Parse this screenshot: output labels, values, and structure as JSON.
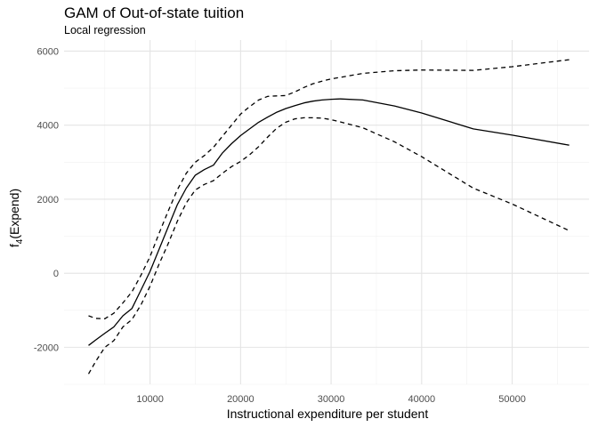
{
  "chart_data": {
    "type": "line",
    "title": "GAM of Out-of-state tuition",
    "subtitle": "Local regression",
    "xlabel": "Instructional expenditure per student",
    "ylabel": {
      "base": "f",
      "subscript": "4",
      "rest": "(Expend)"
    },
    "xlim": [
      500,
      58500
    ],
    "ylim": [
      -3000,
      6300
    ],
    "x_ticks": [
      10000,
      20000,
      30000,
      40000,
      50000
    ],
    "y_ticks": [
      -2000,
      0,
      2000,
      4000,
      6000
    ],
    "x_tick_labels": [
      "10000",
      "20000",
      "30000",
      "40000",
      "50000"
    ],
    "y_tick_labels": [
      "-2000",
      "0",
      "2000",
      "4000",
      "6000"
    ],
    "grid": true,
    "series": [
      {
        "style": "solid",
        "color": "#000000",
        "x": [
          3200,
          4000,
          5000,
          6000,
          7000,
          8000,
          9000,
          10000,
          11000,
          12000,
          13000,
          14000,
          15000,
          16000,
          17000,
          18000,
          19000,
          20000,
          21000,
          22000,
          23000,
          24000,
          25000,
          26000,
          27000,
          28000,
          29000,
          30000,
          31000,
          33500,
          37000,
          40000,
          45700,
          50000,
          56300
        ],
        "y": [
          -1950,
          -1800,
          -1620,
          -1450,
          -1150,
          -950,
          -450,
          50,
          650,
          1250,
          1850,
          2300,
          2650,
          2800,
          2920,
          3250,
          3500,
          3720,
          3900,
          4080,
          4220,
          4350,
          4450,
          4530,
          4600,
          4650,
          4680,
          4700,
          4710,
          4680,
          4520,
          4330,
          3900,
          3730,
          3460
        ]
      },
      {
        "style": "dashed",
        "color": "#000000",
        "x": [
          3200,
          4000,
          5000,
          6000,
          7000,
          8000,
          9000,
          10000,
          11000,
          12000,
          13000,
          14000,
          15000,
          16000,
          17000,
          18000,
          19000,
          20000,
          21000,
          22000,
          23000,
          24000,
          25000,
          26000,
          27000,
          28000,
          29000,
          30000,
          31000,
          33500,
          37000,
          40000,
          45700,
          50000,
          56300
        ],
        "y": [
          -1150,
          -1220,
          -1230,
          -1080,
          -800,
          -500,
          -50,
          450,
          1080,
          1680,
          2250,
          2700,
          3000,
          3180,
          3400,
          3700,
          4000,
          4300,
          4500,
          4680,
          4780,
          4790,
          4800,
          4900,
          5020,
          5120,
          5190,
          5250,
          5290,
          5400,
          5470,
          5490,
          5480,
          5580,
          5770
        ]
      },
      {
        "style": "dashed",
        "color": "#000000",
        "x": [
          3200,
          4000,
          5000,
          6000,
          7000,
          8000,
          9000,
          10000,
          11000,
          12000,
          13000,
          14000,
          15000,
          16000,
          17000,
          18000,
          19000,
          20000,
          21000,
          22000,
          23000,
          24000,
          25000,
          26000,
          27000,
          28000,
          29000,
          30000,
          31000,
          33500,
          37000,
          40000,
          45700,
          50000,
          56300
        ],
        "y": [
          -2720,
          -2380,
          -2000,
          -1820,
          -1450,
          -1250,
          -850,
          -350,
          250,
          800,
          1400,
          1900,
          2250,
          2400,
          2500,
          2700,
          2880,
          3020,
          3200,
          3420,
          3680,
          3920,
          4080,
          4170,
          4200,
          4200,
          4190,
          4150,
          4090,
          3930,
          3550,
          3150,
          2300,
          1870,
          1150
        ]
      }
    ]
  }
}
